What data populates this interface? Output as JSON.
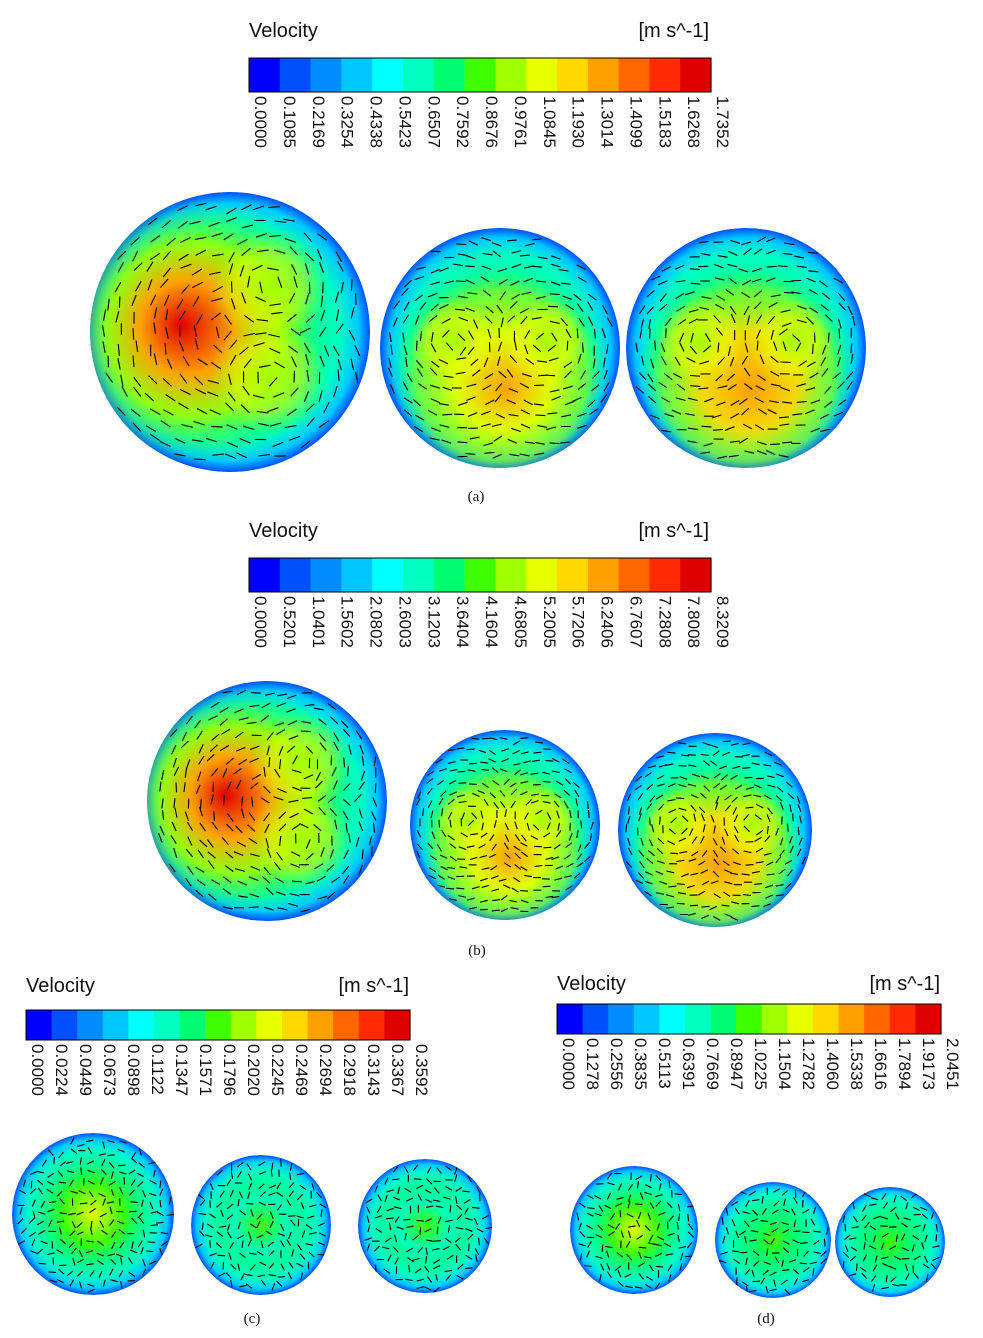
{
  "panels": [
    {
      "id": "a",
      "legend_title": "Velocity",
      "unit": "[m s^-1]",
      "ticks": [
        "0.0000",
        "0.1085",
        "0.2169",
        "0.3254",
        "0.4338",
        "0.5423",
        "0.6507",
        "0.7592",
        "0.8676",
        "0.9761",
        "1.0845",
        "1.1930",
        "1.3014",
        "1.4099",
        "1.5183",
        "1.6268",
        "1.7352"
      ],
      "caption": "(a)",
      "sections": [
        {
          "pattern": "offset-vortex",
          "peak_level": 0.97,
          "vortex_level": 0.55
        },
        {
          "pattern": "dean-pair",
          "peak_level": 0.78,
          "vortex_level": 0.55
        },
        {
          "pattern": "dean-pair",
          "peak_level": 0.82,
          "vortex_level": 0.55
        }
      ]
    },
    {
      "id": "b",
      "legend_title": "Velocity",
      "unit": "[m s^-1]",
      "ticks": [
        "0.0000",
        "0.5201",
        "1.0401",
        "1.5602",
        "2.0802",
        "2.6003",
        "3.1203",
        "3.6404",
        "4.1604",
        "4.6805",
        "5.2005",
        "5.7206",
        "6.2406",
        "6.7607",
        "7.2808",
        "7.8008",
        "8.3209"
      ],
      "caption": "(b)",
      "sections": [
        {
          "pattern": "offset-vortex",
          "peak_level": 0.97,
          "vortex_level": 0.55
        },
        {
          "pattern": "dean-pair",
          "peak_level": 0.78,
          "vortex_level": 0.58
        },
        {
          "pattern": "dean-pair",
          "peak_level": 0.8,
          "vortex_level": 0.55
        }
      ]
    },
    {
      "id": "c",
      "legend_title": "Velocity",
      "unit": "[m s^-1]",
      "ticks": [
        "0.0000",
        "0.0224",
        "0.0449",
        "0.0673",
        "0.0898",
        "0.1122",
        "0.1347",
        "0.1571",
        "0.1796",
        "0.2020",
        "0.2245",
        "0.2469",
        "0.2694",
        "0.2918",
        "0.3143",
        "0.3367",
        "0.3592"
      ],
      "caption": "(c)",
      "sections": [
        {
          "pattern": "central-blob",
          "peak_level": 0.62
        },
        {
          "pattern": "central-blob",
          "peak_level": 0.47
        },
        {
          "pattern": "central-blob",
          "peak_level": 0.47
        }
      ]
    },
    {
      "id": "d",
      "legend_title": "Velocity",
      "unit": "[m s^-1]",
      "ticks": [
        "0.0000",
        "0.1278",
        "0.2556",
        "0.3835",
        "0.5113",
        "0.6391",
        "0.7669",
        "0.8947",
        "1.0225",
        "1.1504",
        "1.2782",
        "1.4060",
        "1.5338",
        "1.6616",
        "1.7894",
        "1.9173",
        "2.0451"
      ],
      "caption": "(d)",
      "sections": [
        {
          "pattern": "central-blob",
          "peak_level": 0.62
        },
        {
          "pattern": "central-blob",
          "peak_level": 0.5
        },
        {
          "pattern": "central-blob",
          "peak_level": 0.5
        }
      ]
    }
  ],
  "colormap": [
    "#0000ff",
    "#0050ff",
    "#008cff",
    "#00c8ff",
    "#00ffff",
    "#00ffc0",
    "#00ff70",
    "#40ff00",
    "#a0ff00",
    "#e8ff00",
    "#ffd800",
    "#ffa000",
    "#ff6600",
    "#ff2a00",
    "#e00000"
  ]
}
